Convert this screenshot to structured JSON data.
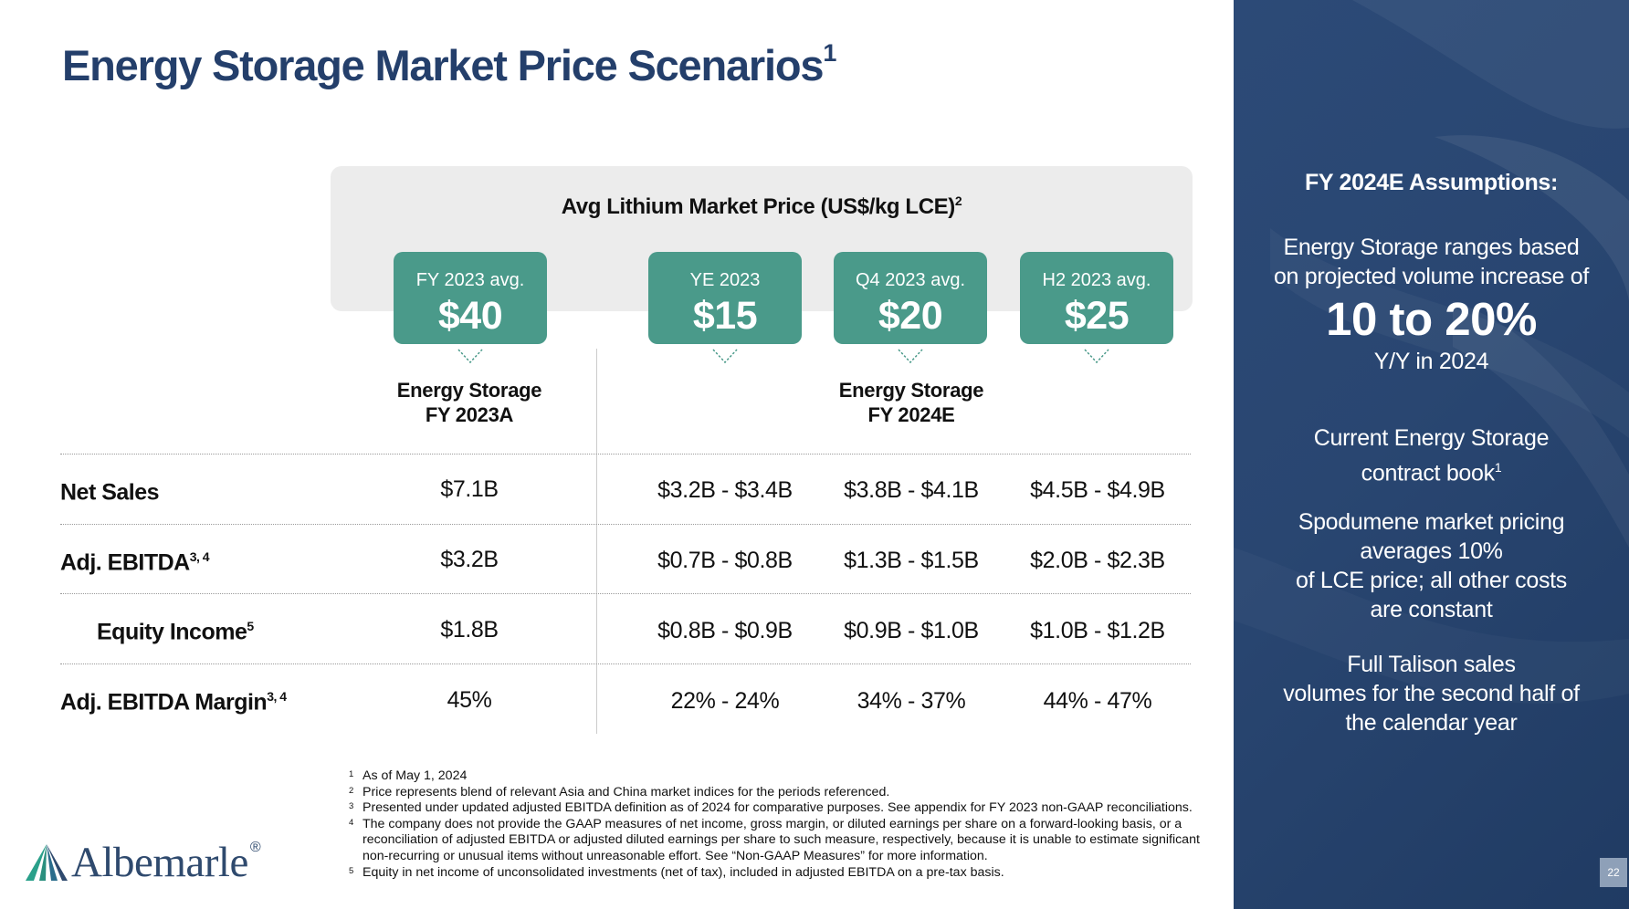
{
  "slide": {
    "title": "Energy Storage Market Price Scenarios",
    "title_sup": "1",
    "page_number": "22"
  },
  "price_band": {
    "title": "Avg Lithium Market Price (US$/kg LCE)",
    "title_sup": "2",
    "boxes": [
      {
        "label": "FY 2023 avg.",
        "value": "$40"
      },
      {
        "label": "YE 2023",
        "value": "$15"
      },
      {
        "label": "Q4 2023 avg.",
        "value": "$20"
      },
      {
        "label": "H2 2023 avg.",
        "value": "$25"
      }
    ]
  },
  "table": {
    "column_headers": [
      {
        "line1": "Energy Storage",
        "line2": "FY 2023A"
      },
      {
        "line1": "Energy Storage",
        "line2": "FY 2024E"
      }
    ],
    "rows": [
      {
        "label": "Net Sales",
        "sup": "",
        "values": [
          "$7.1B",
          "$3.2B - $3.4B",
          "$3.8B - $4.1B",
          "$4.5B - $4.9B"
        ]
      },
      {
        "label": "Adj. EBITDA",
        "sup": "3, 4",
        "values": [
          "$3.2B",
          "$0.7B - $0.8B",
          "$1.3B - $1.5B",
          "$2.0B - $2.3B"
        ]
      },
      {
        "label": "Equity Income",
        "sup": "5",
        "values": [
          "$1.8B",
          "$0.8B - $0.9B",
          "$0.9B - $1.0B",
          "$1.0B - $1.2B"
        ]
      },
      {
        "label": "Adj. EBITDA Margin",
        "sup": "3, 4",
        "values": [
          "45%",
          "22% - 24%",
          "34% - 37%",
          "44% - 47%"
        ]
      }
    ]
  },
  "footnotes": [
    {
      "num": "1",
      "text": "As of May 1, 2024"
    },
    {
      "num": "2",
      "text": "Price represents blend of relevant Asia and China market indices for the periods referenced."
    },
    {
      "num": "3",
      "text": "Presented under updated adjusted EBITDA definition as of 2024 for comparative purposes. See appendix for FY 2023 non-GAAP reconciliations."
    },
    {
      "num": "4",
      "text": "The company does not provide the GAAP measures of net income, gross margin, or diluted earnings per share on a forward-looking basis, or a reconciliation of adjusted EBITDA or adjusted diluted earnings per share to such measure, respectively, because it is unable to estimate significant non-recurring or unusual items without unreasonable effort. See “Non-GAAP Measures” for more information."
    },
    {
      "num": "5",
      "text": "Equity in net income of unconsolidated investments (net of tax), included in adjusted EBITDA on a pre-tax basis."
    }
  ],
  "logo": {
    "text": "Albemarle",
    "mark": "®"
  },
  "sidebar": {
    "heading": "FY 2024E Assumptions:",
    "p1_line1": "Energy Storage ranges based",
    "p1_line2": "on projected volume increase of",
    "big": "10 to 20%",
    "p1_line3": "Y/Y in 2024",
    "p2_line1": "Current Energy Storage",
    "p2_line2": "contract book",
    "p2_sup": "1",
    "p3_line1": "Spodumene market pricing",
    "p3_line2": "averages 10%",
    "p3_line3": "of LCE price; all other costs",
    "p3_line4": "are constant",
    "p4_line1": "Full Talison sales",
    "p4_line2": "volumes for the second half of",
    "p4_line3": "the calendar year"
  },
  "colors": {
    "title": "#243f6b",
    "price_box": "#4a9a8a",
    "sidebar": "#2a4772",
    "band": "#ececec"
  }
}
